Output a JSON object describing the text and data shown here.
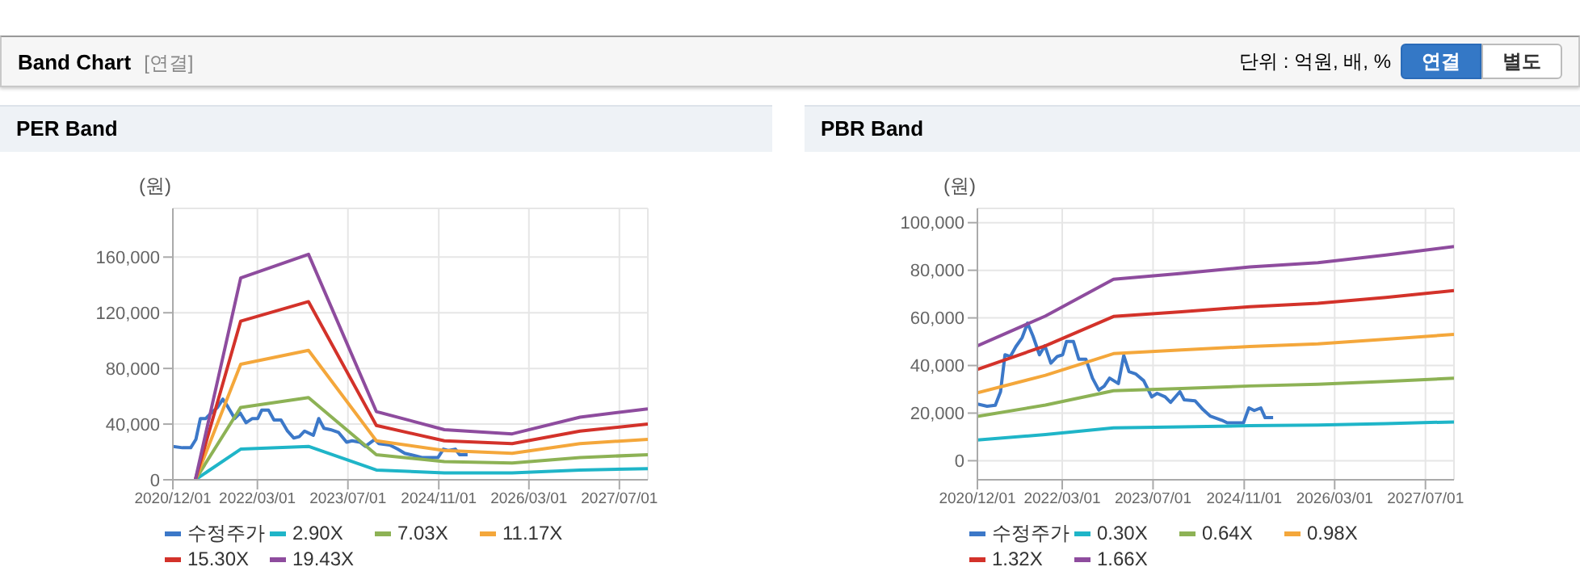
{
  "chart_data": [
    {
      "type": "other",
      "title": "Band Chart",
      "annotations": [
        "[연결]",
        "단위 : 억원, 배, %",
        "연결",
        "별도"
      ]
    },
    {
      "type": "line",
      "title": "PER Band",
      "ylabel": "(원)",
      "grid": true,
      "legend": "bottom",
      "xlim": [
        "2020-12-01",
        "2027-12-01"
      ],
      "xticks": [
        {
          "value": "2020-12-01",
          "label": "2020/12/01"
        },
        {
          "value": "2022-03-01",
          "label": "2022/03/01"
        },
        {
          "value": "2023-07-01",
          "label": "2023/07/01"
        },
        {
          "value": "2024-11-01",
          "label": "2024/11/01"
        },
        {
          "value": "2026-03-01",
          "label": "2026/03/01"
        },
        {
          "value": "2027-07-01",
          "label": "2027/07/01"
        }
      ],
      "ylim": [
        0,
        195000
      ],
      "yticks": [
        0,
        {
          "value": 40000,
          "label": "40,000"
        },
        {
          "value": 80000,
          "label": "80,000"
        },
        {
          "value": 120000,
          "label": "120,000"
        },
        {
          "value": 160000,
          "label": "160,000"
        }
      ],
      "series": [
        {
          "name": "수정주가",
          "color": "#3c78c8",
          "x": [
            "2020-12-01",
            "2021-01-22",
            "2021-03-07",
            "2021-04-04",
            "2021-04-28",
            "2021-05-27",
            "2021-06-25",
            "2021-07-29",
            "2021-08-27",
            "2021-09-25",
            "2021-10-30",
            "2021-11-28",
            "2021-12-30",
            "2022-02-02",
            "2022-03-03",
            "2022-03-24",
            "2022-04-30",
            "2022-05-29",
            "2022-07-06",
            "2022-08-10",
            "2022-09-13",
            "2022-10-12",
            "2022-11-10",
            "2022-12-27",
            "2023-01-25",
            "2023-02-22",
            "2023-03-29",
            "2023-05-12",
            "2023-06-24",
            "2023-07-23",
            "2023-09-04",
            "2023-10-03",
            "2023-11-22",
            "2023-12-15",
            "2024-02-11",
            "2024-03-25",
            "2024-05-02",
            "2024-07-04",
            "2024-08-02",
            "2024-10-28",
            "2024-11-26",
            "2024-12-25",
            "2025-01-29",
            "2025-02-21",
            "2025-04-05"
          ],
          "values": [
            24000,
            23000,
            23000,
            29000,
            44000,
            44000,
            48000,
            52000,
            58000,
            52000,
            44000,
            48000,
            41000,
            44000,
            44000,
            50000,
            50000,
            43000,
            43000,
            35000,
            30000,
            31000,
            35000,
            32000,
            44000,
            37000,
            36000,
            34000,
            27000,
            28000,
            27000,
            24000,
            29000,
            26000,
            25000,
            22000,
            19000,
            17000,
            16000,
            16000,
            22000,
            21000,
            22000,
            18000,
            18000
          ]
        },
        {
          "name": "2.90X",
          "color": "#1fb5c8",
          "x": [
            "2021-04-01",
            "2021-12-01",
            "2022-12-01",
            "2023-12-01",
            "2024-12-01",
            "2025-12-01",
            "2026-12-01",
            "2027-12-01"
          ],
          "values": [
            0,
            22000,
            24000,
            7000,
            5000,
            5000,
            7000,
            8000
          ]
        },
        {
          "name": "7.03X",
          "color": "#8db255",
          "x": [
            "2021-04-01",
            "2021-12-01",
            "2022-12-01",
            "2023-12-01",
            "2024-12-01",
            "2025-12-01",
            "2026-12-01",
            "2027-12-01"
          ],
          "values": [
            0,
            52000,
            59000,
            18000,
            13000,
            12000,
            16000,
            18000
          ]
        },
        {
          "name": "11.17X",
          "color": "#f4a73b",
          "x": [
            "2021-04-01",
            "2021-12-01",
            "2022-12-01",
            "2023-12-01",
            "2024-12-01",
            "2025-12-01",
            "2026-12-01",
            "2027-12-01"
          ],
          "values": [
            0,
            83000,
            93000,
            28000,
            21000,
            19000,
            26000,
            29000
          ]
        },
        {
          "name": "15.30X",
          "color": "#d3322a",
          "x": [
            "2021-04-01",
            "2021-12-01",
            "2022-12-01",
            "2023-12-01",
            "2024-12-01",
            "2025-12-01",
            "2026-12-01",
            "2027-12-01"
          ],
          "values": [
            0,
            114000,
            128000,
            39000,
            28000,
            26000,
            35000,
            40000
          ]
        },
        {
          "name": "19.43X",
          "color": "#8e4c9e",
          "x": [
            "2021-04-01",
            "2021-12-01",
            "2022-12-01",
            "2023-12-01",
            "2024-12-01",
            "2025-12-01",
            "2026-12-01",
            "2027-12-01"
          ],
          "values": [
            0,
            145000,
            162000,
            49000,
            36000,
            33000,
            45000,
            51000
          ]
        }
      ]
    },
    {
      "type": "line",
      "title": "PBR Band",
      "ylabel": "(원)",
      "grid": true,
      "legend": "bottom",
      "xlim": [
        "2020-12-01",
        "2027-12-01"
      ],
      "xticks": [
        {
          "value": "2020-12-01",
          "label": "2020/12/01"
        },
        {
          "value": "2022-03-01",
          "label": "2022/03/01"
        },
        {
          "value": "2023-07-01",
          "label": "2023/07/01"
        },
        {
          "value": "2024-11-01",
          "label": "2024/11/01"
        },
        {
          "value": "2026-03-01",
          "label": "2026/03/01"
        },
        {
          "value": "2027-07-01",
          "label": "2027/07/01"
        }
      ],
      "ylim": [
        -8000,
        106000
      ],
      "yticks": [
        0,
        {
          "value": 20000,
          "label": "20,000"
        },
        {
          "value": 40000,
          "label": "40,000"
        },
        {
          "value": 60000,
          "label": "60,000"
        },
        {
          "value": 80000,
          "label": "80,000"
        },
        {
          "value": 100000,
          "label": "100,000"
        }
      ],
      "series": [
        {
          "name": "수정주가",
          "color": "#3c78c8",
          "x": [
            "2020-12-01",
            "2021-01-22",
            "2021-03-07",
            "2021-04-04",
            "2021-04-28",
            "2021-05-27",
            "2021-06-25",
            "2021-07-29",
            "2021-08-27",
            "2021-09-25",
            "2021-10-30",
            "2021-11-28",
            "2021-12-30",
            "2022-02-02",
            "2022-03-03",
            "2022-03-24",
            "2022-04-30",
            "2022-05-29",
            "2022-07-06",
            "2022-08-10",
            "2022-09-13",
            "2022-10-12",
            "2022-11-10",
            "2022-12-27",
            "2023-01-25",
            "2023-02-22",
            "2023-03-29",
            "2023-05-12",
            "2023-06-24",
            "2023-07-23",
            "2023-09-04",
            "2023-10-03",
            "2023-11-22",
            "2023-12-15",
            "2024-02-11",
            "2024-03-25",
            "2024-05-02",
            "2024-07-04",
            "2024-08-02",
            "2024-10-28",
            "2024-11-26",
            "2024-12-25",
            "2025-01-29",
            "2025-02-21",
            "2025-04-05"
          ],
          "values": [
            23800,
            22900,
            23300,
            29000,
            44500,
            43800,
            47900,
            51700,
            57800,
            52400,
            44500,
            48300,
            41000,
            43800,
            44500,
            50100,
            50100,
            42600,
            42600,
            34700,
            29700,
            31300,
            34700,
            32400,
            44200,
            37400,
            36500,
            33600,
            26800,
            28300,
            26800,
            24500,
            29000,
            25600,
            25200,
            21500,
            18800,
            17000,
            15900,
            15900,
            22200,
            21100,
            22200,
            18100,
            18100
          ]
        },
        {
          "name": "0.30X",
          "color": "#1fb5c8",
          "x": [
            "2020-12-01",
            "2021-12-01",
            "2022-12-01",
            "2023-12-01",
            "2024-12-01",
            "2025-12-01",
            "2026-12-01",
            "2027-12-01"
          ],
          "values": [
            8700,
            11000,
            13800,
            14200,
            14700,
            15000,
            15600,
            16300
          ]
        },
        {
          "name": "0.64X",
          "color": "#8db255",
          "x": [
            "2020-12-01",
            "2021-12-01",
            "2022-12-01",
            "2023-12-01",
            "2024-12-01",
            "2025-12-01",
            "2026-12-01",
            "2027-12-01"
          ],
          "values": [
            18600,
            23400,
            29400,
            30300,
            31400,
            32100,
            33300,
            34700
          ]
        },
        {
          "name": "0.98X",
          "color": "#f4a73b",
          "x": [
            "2020-12-01",
            "2021-12-01",
            "2022-12-01",
            "2023-12-01",
            "2024-12-01",
            "2025-12-01",
            "2026-12-01",
            "2027-12-01"
          ],
          "values": [
            28500,
            35900,
            45000,
            46500,
            48000,
            49100,
            51000,
            53100
          ]
        },
        {
          "name": "1.32X",
          "color": "#d3322a",
          "x": [
            "2020-12-01",
            "2021-12-01",
            "2022-12-01",
            "2023-12-01",
            "2024-12-01",
            "2025-12-01",
            "2026-12-01",
            "2027-12-01"
          ],
          "values": [
            38400,
            48300,
            60600,
            62600,
            64700,
            66100,
            68600,
            71500
          ]
        },
        {
          "name": "1.66X",
          "color": "#8e4c9e",
          "x": [
            "2020-12-01",
            "2021-12-01",
            "2022-12-01",
            "2023-12-01",
            "2024-12-01",
            "2025-12-01",
            "2026-12-01",
            "2027-12-01"
          ],
          "values": [
            48300,
            60800,
            76200,
            78700,
            81400,
            83200,
            86400,
            90000
          ]
        }
      ]
    }
  ]
}
